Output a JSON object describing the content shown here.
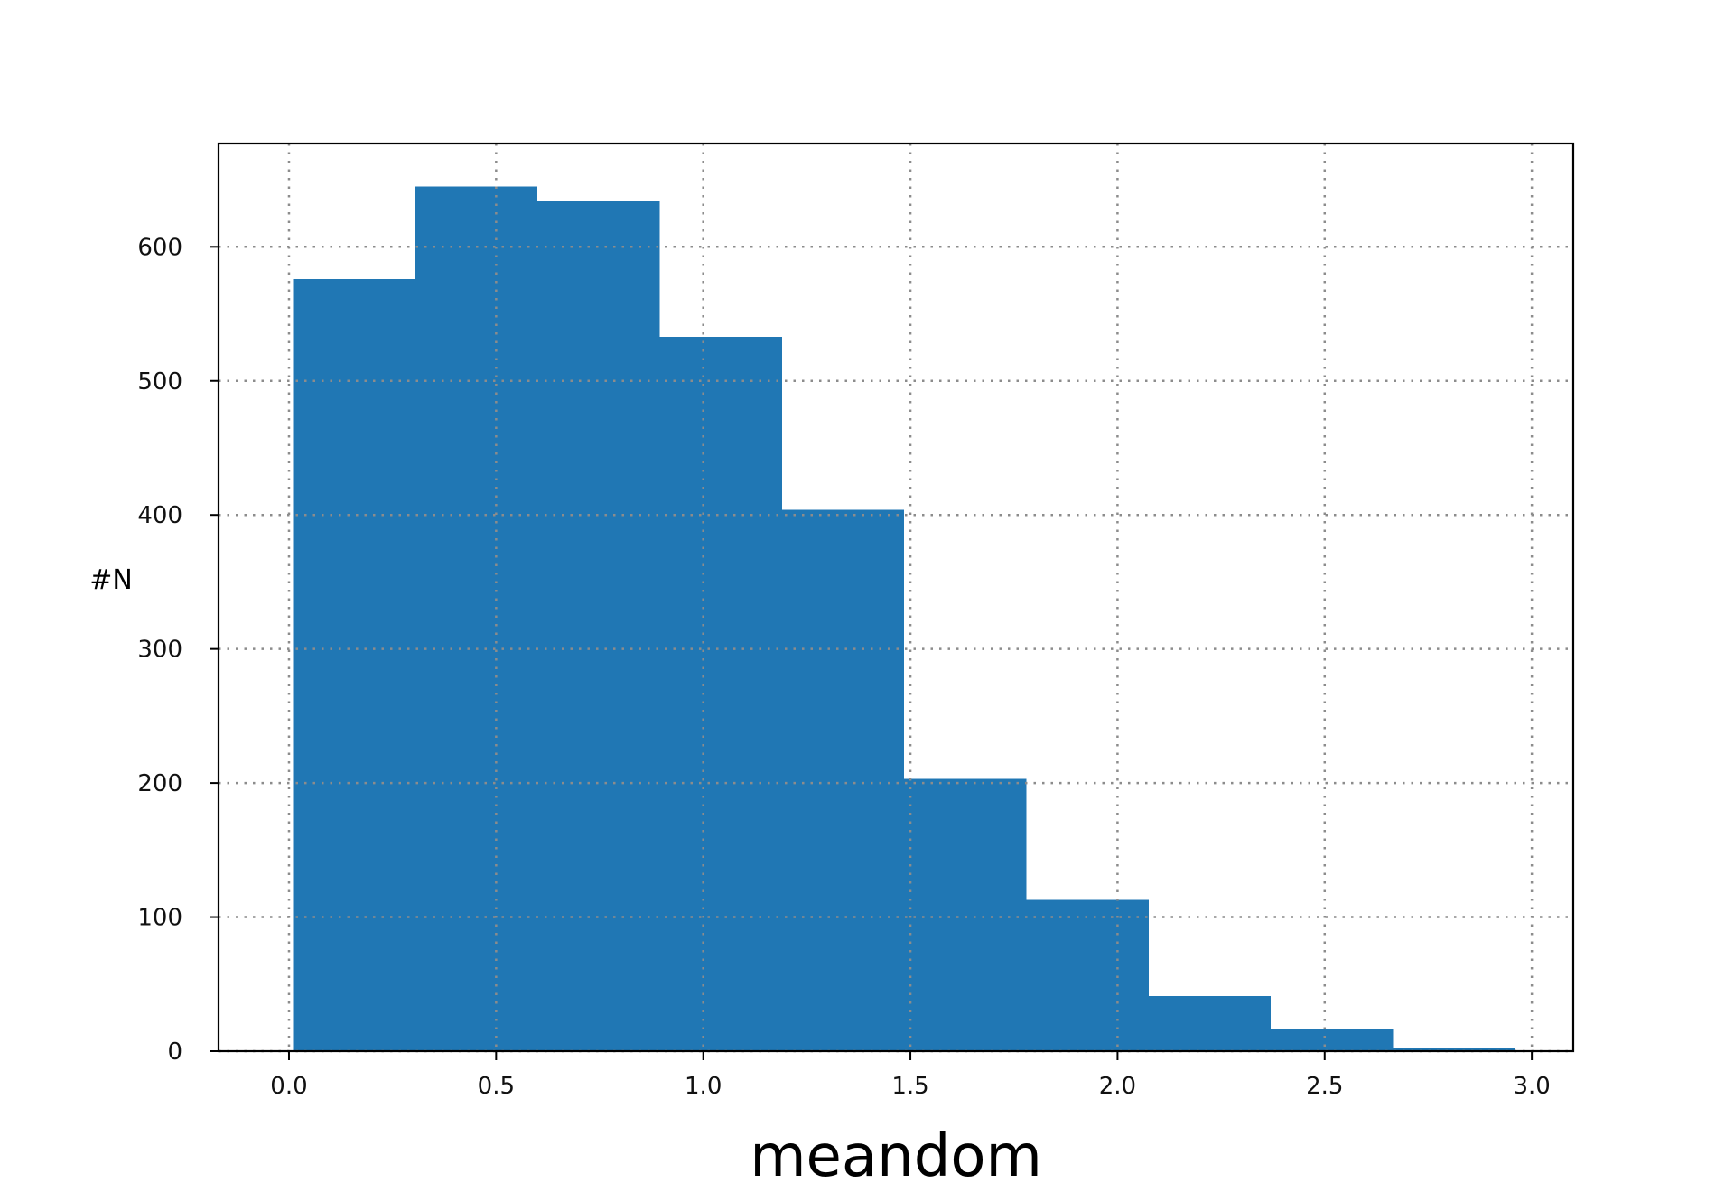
{
  "chart_data": {
    "type": "bar",
    "subtype": "histogram",
    "xlabel": "meandom",
    "ylabel": "#N",
    "xlim": [
      -0.17,
      3.1
    ],
    "ylim": [
      0,
      677
    ],
    "xticks": [
      0.0,
      0.5,
      1.0,
      1.5,
      2.0,
      2.5,
      3.0
    ],
    "xtick_labels": [
      "0.0",
      "0.5",
      "1.0",
      "1.5",
      "2.0",
      "2.5",
      "3.0"
    ],
    "yticks": [
      0,
      100,
      200,
      300,
      400,
      500,
      600
    ],
    "ytick_labels": [
      "0",
      "100",
      "200",
      "300",
      "400",
      "500",
      "600"
    ],
    "grid": true,
    "bins": [
      {
        "x0": 0.01,
        "x1": 0.305,
        "count": 576
      },
      {
        "x0": 0.305,
        "x1": 0.6,
        "count": 645
      },
      {
        "x0": 0.6,
        "x1": 0.895,
        "count": 634
      },
      {
        "x0": 0.895,
        "x1": 1.19,
        "count": 533
      },
      {
        "x0": 1.19,
        "x1": 1.485,
        "count": 404
      },
      {
        "x0": 1.485,
        "x1": 1.78,
        "count": 203
      },
      {
        "x0": 1.78,
        "x1": 2.075,
        "count": 113
      },
      {
        "x0": 2.075,
        "x1": 2.37,
        "count": 41
      },
      {
        "x0": 2.37,
        "x1": 2.665,
        "count": 16
      },
      {
        "x0": 2.665,
        "x1": 2.96,
        "count": 2
      }
    ],
    "colors": {
      "bar": "#2077b4",
      "grid": "#8c8c8c",
      "axes": "#000000"
    }
  }
}
